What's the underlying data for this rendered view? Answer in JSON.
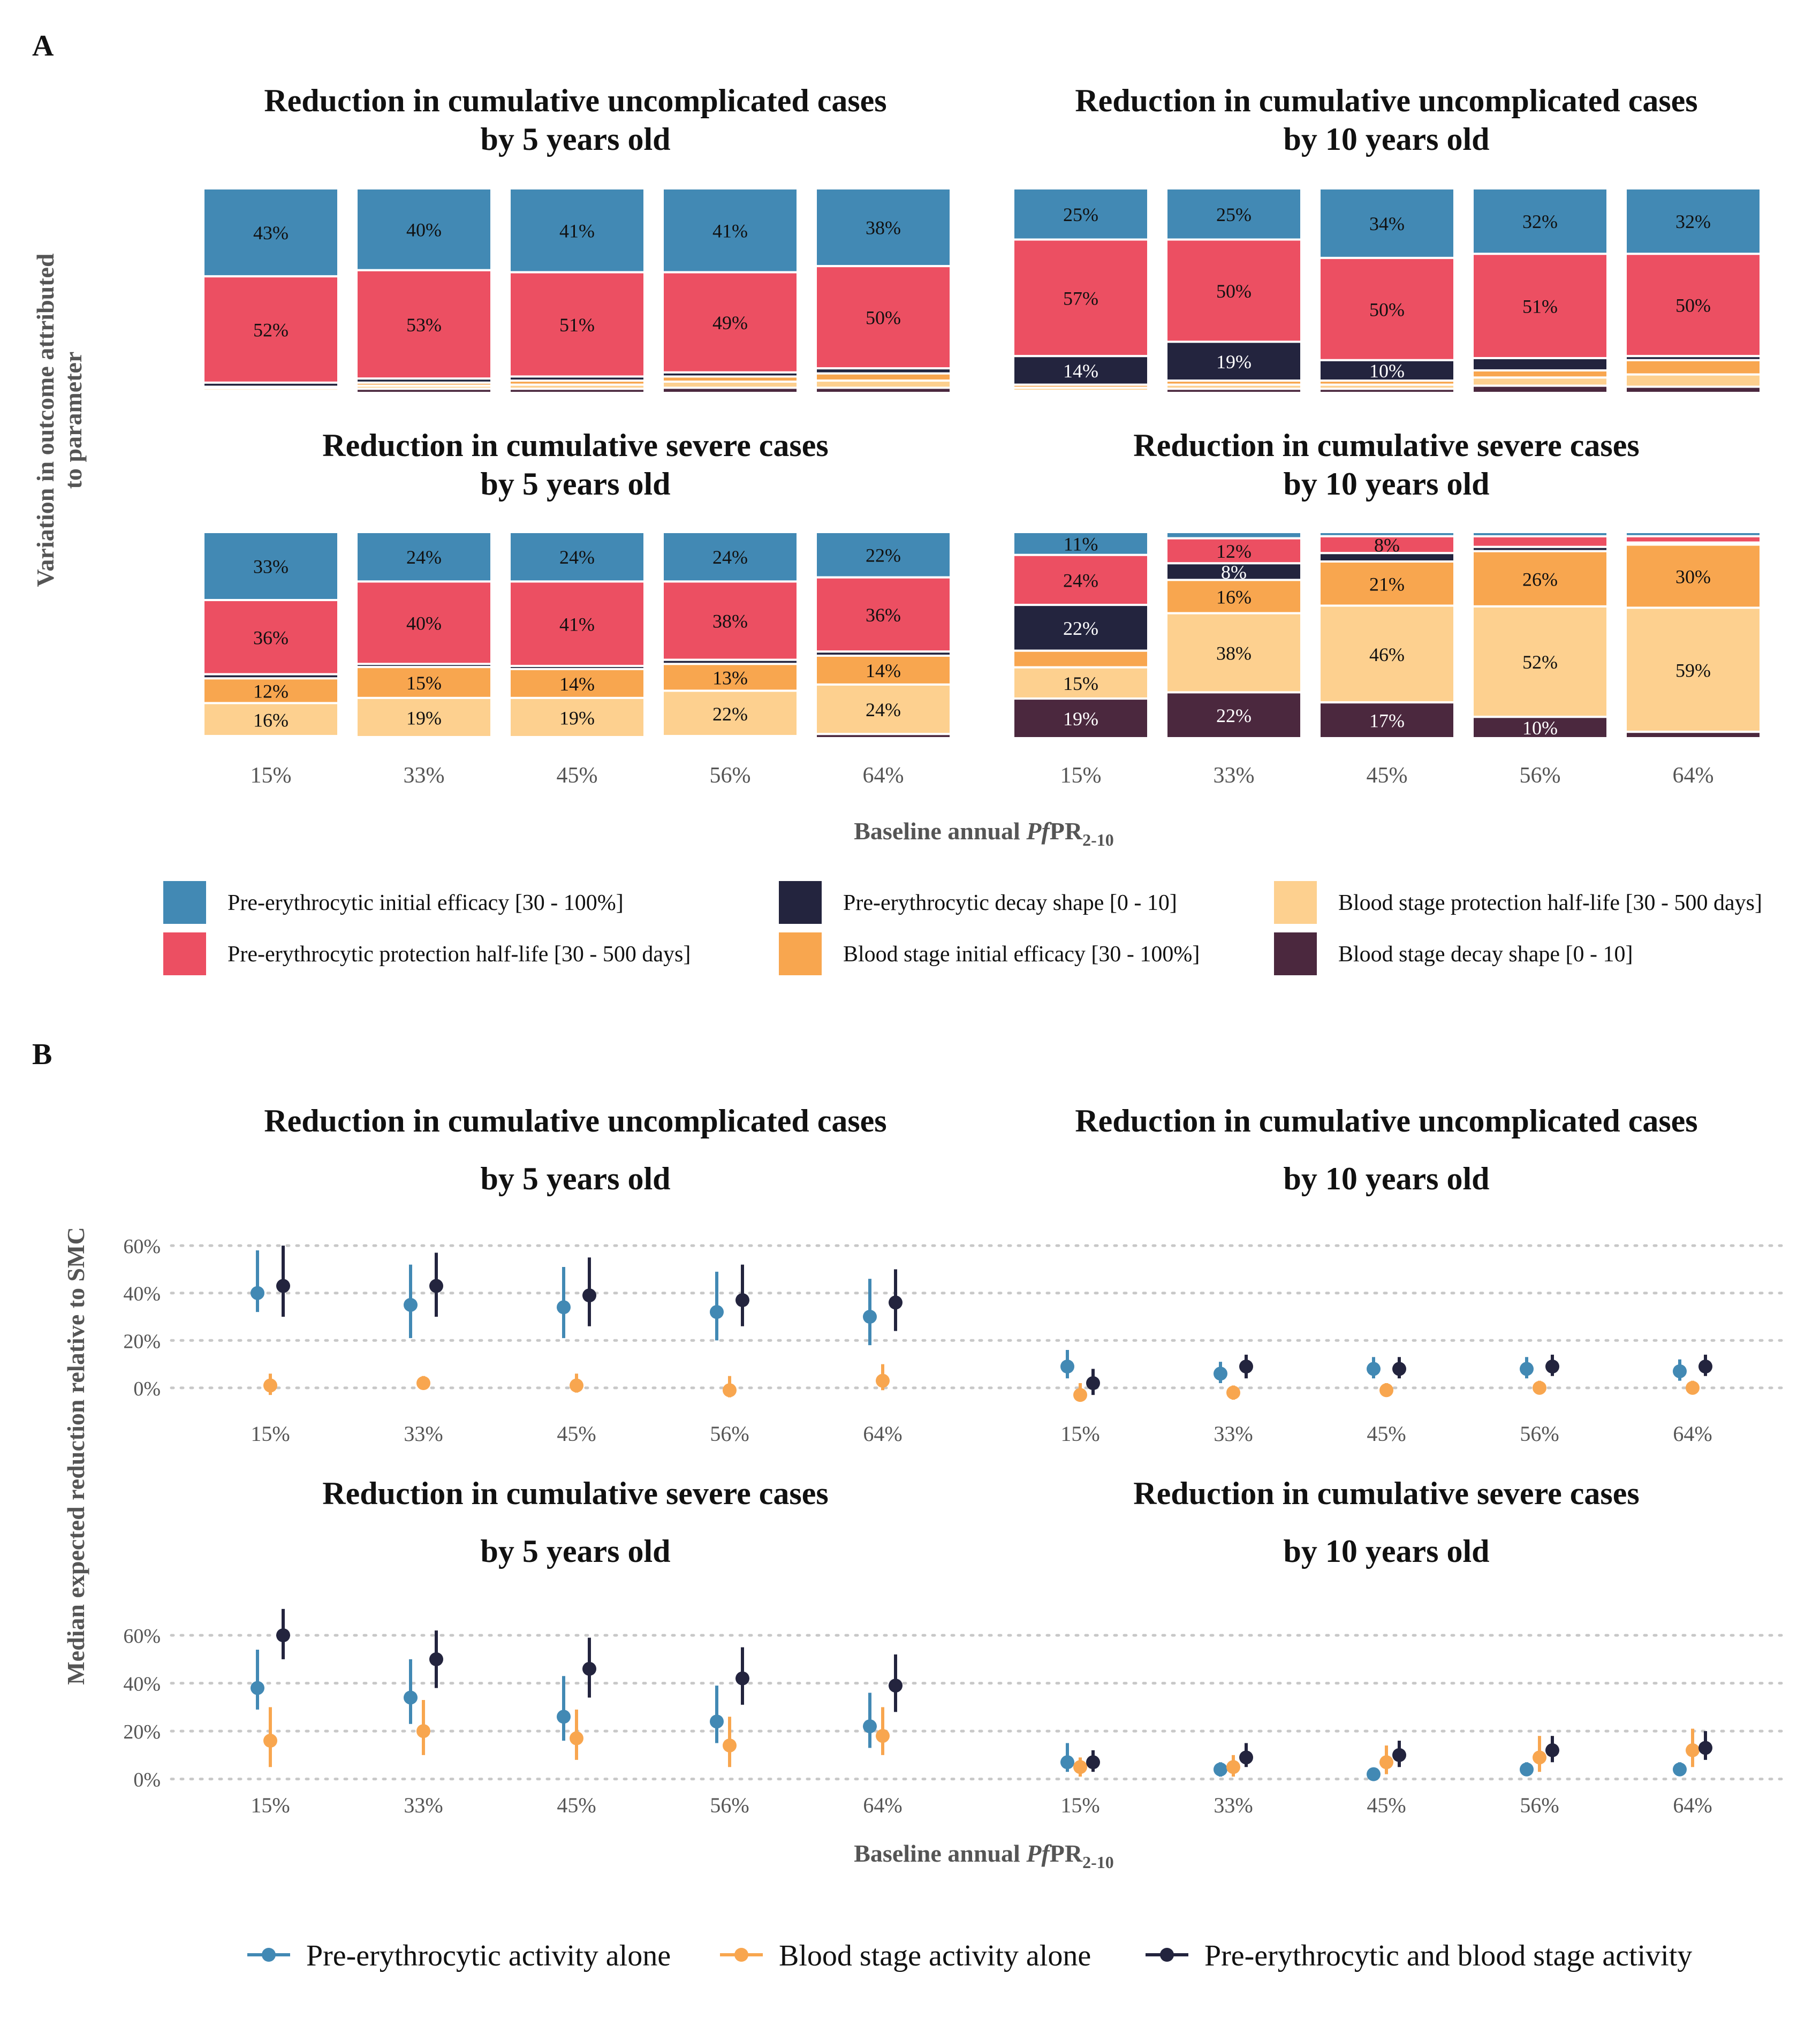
{
  "figure": {
    "panel_a_letter": "A",
    "panel_b_letter": "B",
    "a_ylabel_line1": "Variation in outcome attributed",
    "a_ylabel_line2": "to parameter",
    "b_ylabel": "Median expected reduction relative to SMC",
    "xlabel_prefix": "Baseline annual ",
    "xlabel_italic": "Pf",
    "xlabel_main": "PR",
    "xlabel_sub": "2-10"
  },
  "colors": {
    "pe_init": "#4289B4",
    "pe_half": "#EC4F62",
    "pe_shape": "#23243E",
    "bs_init": "#F8A64F",
    "bs_half": "#FDD08F",
    "bs_shape": "#4B283E",
    "b_pe": "#4289B4",
    "b_bs": "#F8A64F",
    "b_both": "#23243E"
  },
  "legend_a": [
    {
      "key": "pe_init",
      "label": "Pre-erythrocytic initial efficacy [30 - 100%]"
    },
    {
      "key": "pe_half",
      "label": "Pre-erythrocytic protection half-life [30 - 500 days]"
    },
    {
      "key": "pe_shape",
      "label": "Pre-erythrocytic decay shape [0 - 10]"
    },
    {
      "key": "bs_init",
      "label": "Blood stage initial efficacy [30 - 100%]"
    },
    {
      "key": "bs_half",
      "label": "Blood stage protection half-life [30 - 500 days]"
    },
    {
      "key": "bs_shape",
      "label": "Blood stage decay shape [0 - 10]"
    }
  ],
  "legend_b": [
    {
      "key": "b_pe",
      "label": "Pre-erythrocytic activity alone"
    },
    {
      "key": "b_bs",
      "label": "Blood stage activity alone"
    },
    {
      "key": "b_both",
      "label": "Pre-erythrocytic and blood stage activity"
    }
  ],
  "chart_data": [
    {
      "type": "bar",
      "panel": "A",
      "stacked": true,
      "title": "Reduction in cumulative uncomplicated cases\nby 5 years old",
      "categories": [
        "15%",
        "33%",
        "45%",
        "56%",
        "64%"
      ],
      "series_order_top_to_bottom": [
        "pe_init",
        "pe_half",
        "pe_shape",
        "bs_init",
        "bs_half",
        "bs_shape"
      ],
      "values": [
        [
          43,
          52,
          2,
          0.8,
          1.2,
          1
        ],
        [
          40,
          53,
          2,
          1.5,
          1.5,
          2
        ],
        [
          41,
          51,
          2,
          2,
          2,
          2
        ],
        [
          41,
          49,
          2,
          2.5,
          3,
          2.5
        ],
        [
          38,
          50,
          2.5,
          3.5,
          3.5,
          2.5
        ]
      ],
      "labels": [
        [
          "43%",
          "52%",
          "",
          "",
          "",
          ""
        ],
        [
          "40%",
          "53%",
          "",
          "",
          "",
          ""
        ],
        [
          "41%",
          "51%",
          "",
          "",
          "",
          ""
        ],
        [
          "41%",
          "49%",
          "",
          "",
          "",
          ""
        ],
        [
          "38%",
          "50%",
          "",
          "",
          "",
          ""
        ]
      ]
    },
    {
      "type": "bar",
      "panel": "A",
      "stacked": true,
      "title": "Reduction in cumulative uncomplicated cases\nby 10 years old",
      "categories": [
        "15%",
        "33%",
        "45%",
        "56%",
        "64%"
      ],
      "series_order_top_to_bottom": [
        "pe_init",
        "pe_half",
        "pe_shape",
        "bs_init",
        "bs_half",
        "bs_shape"
      ],
      "values": [
        [
          25,
          57,
          14,
          1.5,
          1.5,
          1
        ],
        [
          25,
          50,
          19,
          2,
          2,
          2
        ],
        [
          34,
          50,
          10,
          2,
          2,
          2
        ],
        [
          32,
          51,
          6,
          3.5,
          4,
          3.5
        ],
        [
          32,
          50,
          2,
          7,
          6,
          3
        ]
      ],
      "labels": [
        [
          "25%",
          "57%",
          "14%",
          "",
          "",
          ""
        ],
        [
          "25%",
          "50%",
          "19%",
          "",
          "",
          ""
        ],
        [
          "34%",
          "50%",
          "10%",
          "",
          "",
          ""
        ],
        [
          "32%",
          "51%",
          "",
          "",
          "",
          ""
        ],
        [
          "32%",
          "50%",
          "",
          "",
          "",
          ""
        ]
      ]
    },
    {
      "type": "bar",
      "panel": "A",
      "stacked": true,
      "title": "Reduction in cumulative severe cases\nby 5 years old",
      "categories": [
        "15%",
        "33%",
        "45%",
        "56%",
        "64%"
      ],
      "series_order_top_to_bottom": [
        "pe_init",
        "pe_half",
        "pe_shape",
        "bs_init",
        "bs_half",
        "bs_shape"
      ],
      "values": [
        [
          33,
          36,
          2,
          12,
          16,
          1
        ],
        [
          24,
          40,
          1.5,
          15,
          19,
          0.5
        ],
        [
          24,
          41,
          1.5,
          14,
          19,
          0.5
        ],
        [
          24,
          38,
          2,
          13,
          22,
          1
        ],
        [
          22,
          36,
          2,
          14,
          24,
          2
        ]
      ],
      "labels": [
        [
          "33%",
          "36%",
          "",
          "12%",
          "16%",
          ""
        ],
        [
          "24%",
          "40%",
          "",
          "15%",
          "19%",
          ""
        ],
        [
          "24%",
          "41%",
          "",
          "14%",
          "19%",
          ""
        ],
        [
          "24%",
          "38%",
          "",
          "13%",
          "22%",
          ""
        ],
        [
          "22%",
          "36%",
          "",
          "14%",
          "24%",
          ""
        ]
      ]
    },
    {
      "type": "bar",
      "panel": "A",
      "stacked": true,
      "title": "Reduction in cumulative severe cases\nby 10 years old",
      "categories": [
        "15%",
        "33%",
        "45%",
        "56%",
        "64%"
      ],
      "series_order_top_to_bottom": [
        "pe_init",
        "pe_half",
        "pe_shape",
        "bs_init",
        "bs_half",
        "bs_shape"
      ],
      "values": [
        [
          11,
          24,
          22,
          8,
          15,
          19
        ],
        [
          3,
          12,
          8,
          16,
          38,
          22
        ],
        [
          2,
          8,
          4,
          21,
          46,
          17
        ],
        [
          2,
          5,
          2,
          26,
          52,
          10
        ],
        [
          2,
          3,
          1,
          30,
          59,
          3
        ]
      ],
      "labels": [
        [
          "11%",
          "24%",
          "22%",
          "",
          "15%",
          "19%"
        ],
        [
          "",
          "12%",
          "8%",
          "16%",
          "38%",
          "22%"
        ],
        [
          "",
          "8%",
          "",
          "21%",
          "46%",
          "17%"
        ],
        [
          "",
          "",
          "",
          "26%",
          "52%",
          "10%"
        ],
        [
          "",
          "",
          "",
          "30%",
          "59%",
          ""
        ]
      ]
    },
    {
      "type": "scatter",
      "panel": "B",
      "error_bars": true,
      "title_line1": "Reduction in cumulative uncomplicated cases",
      "title_line2": "by 5 years old",
      "categories": [
        "15%",
        "33%",
        "45%",
        "56%",
        "64%"
      ],
      "y_ticks": [
        "0%",
        "20%",
        "40%",
        "60%"
      ],
      "ylim": [
        -5,
        65
      ],
      "series": [
        {
          "key": "b_pe",
          "values": [
            [
              40,
              32,
              58
            ],
            [
              35,
              21,
              52
            ],
            [
              34,
              21,
              51
            ],
            [
              32,
              20,
              49
            ],
            [
              30,
              18,
              46
            ]
          ]
        },
        {
          "key": "b_bs",
          "values": [
            [
              1,
              -3,
              6
            ],
            [
              2,
              0,
              5
            ],
            [
              1,
              -2,
              6
            ],
            [
              -1,
              -4,
              5
            ],
            [
              3,
              -1,
              10
            ]
          ]
        },
        {
          "key": "b_both",
          "values": [
            [
              43,
              30,
              60
            ],
            [
              43,
              30,
              57
            ],
            [
              39,
              26,
              55
            ],
            [
              37,
              26,
              52
            ],
            [
              36,
              24,
              50
            ]
          ]
        }
      ]
    },
    {
      "type": "scatter",
      "panel": "B",
      "error_bars": true,
      "title_line1": "Reduction in cumulative uncomplicated cases",
      "title_line2": "by 10 years old",
      "categories": [
        "15%",
        "33%",
        "45%",
        "56%",
        "64%"
      ],
      "y_ticks": [
        "0%",
        "20%",
        "40%",
        "60%"
      ],
      "ylim": [
        -5,
        65
      ],
      "series": [
        {
          "key": "b_pe",
          "values": [
            [
              9,
              4,
              16
            ],
            [
              6,
              2,
              11
            ],
            [
              8,
              4,
              13
            ],
            [
              8,
              4,
              13
            ],
            [
              7,
              3,
              12
            ]
          ]
        },
        {
          "key": "b_bs",
          "values": [
            [
              -3,
              -5,
              2
            ],
            [
              -2,
              -5,
              1
            ],
            [
              -1,
              -3,
              2
            ],
            [
              0,
              -2,
              3
            ],
            [
              0,
              -2,
              3
            ]
          ]
        },
        {
          "key": "b_both",
          "values": [
            [
              2,
              -3,
              8
            ],
            [
              9,
              4,
              14
            ],
            [
              8,
              4,
              13
            ],
            [
              9,
              5,
              14
            ],
            [
              9,
              5,
              14
            ]
          ]
        }
      ]
    },
    {
      "type": "scatter",
      "panel": "B",
      "error_bars": true,
      "title_line1": "Reduction in cumulative severe cases",
      "title_line2": "by 5 years old",
      "categories": [
        "15%",
        "33%",
        "45%",
        "56%",
        "64%"
      ],
      "y_ticks": [
        "0%",
        "20%",
        "40%",
        "60%"
      ],
      "ylim": [
        -5,
        75
      ],
      "series": [
        {
          "key": "b_pe",
          "values": [
            [
              38,
              29,
              54
            ],
            [
              34,
              23,
              50
            ],
            [
              26,
              16,
              43
            ],
            [
              24,
              15,
              39
            ],
            [
              22,
              13,
              36
            ]
          ]
        },
        {
          "key": "b_bs",
          "values": [
            [
              16,
              5,
              30
            ],
            [
              20,
              10,
              33
            ],
            [
              17,
              8,
              29
            ],
            [
              14,
              5,
              26
            ],
            [
              18,
              10,
              30
            ]
          ]
        },
        {
          "key": "b_both",
          "values": [
            [
              60,
              50,
              71
            ],
            [
              50,
              38,
              62
            ],
            [
              46,
              34,
              59
            ],
            [
              42,
              31,
              55
            ],
            [
              39,
              28,
              52
            ]
          ]
        }
      ]
    },
    {
      "type": "scatter",
      "panel": "B",
      "error_bars": true,
      "title_line1": "Reduction in cumulative severe cases",
      "title_line2": "by 10 years old",
      "categories": [
        "15%",
        "33%",
        "45%",
        "56%",
        "64%"
      ],
      "y_ticks": [
        "0%",
        "20%",
        "40%",
        "60%"
      ],
      "ylim": [
        -5,
        75
      ],
      "series": [
        {
          "key": "b_pe",
          "values": [
            [
              7,
              3,
              15
            ],
            [
              4,
              1,
              7
            ],
            [
              2,
              0,
              4
            ],
            [
              4,
              2,
              7
            ],
            [
              4,
              2,
              7
            ]
          ]
        },
        {
          "key": "b_bs",
          "values": [
            [
              5,
              1,
              9
            ],
            [
              5,
              1,
              10
            ],
            [
              7,
              2,
              14
            ],
            [
              9,
              3,
              18
            ],
            [
              12,
              5,
              21
            ]
          ]
        },
        {
          "key": "b_both",
          "values": [
            [
              7,
              3,
              12
            ],
            [
              9,
              5,
              15
            ],
            [
              10,
              5,
              16
            ],
            [
              12,
              7,
              18
            ],
            [
              13,
              8,
              20
            ]
          ]
        }
      ]
    }
  ]
}
